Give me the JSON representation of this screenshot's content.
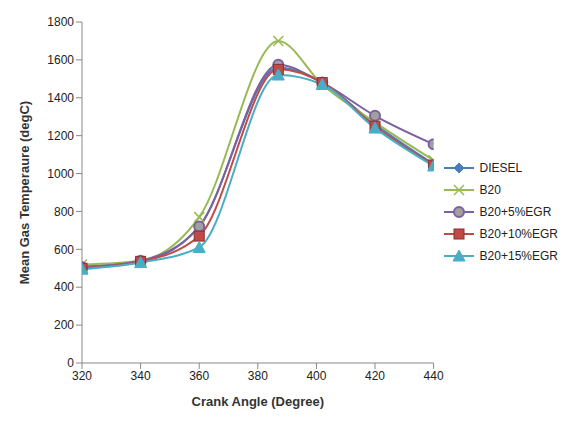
{
  "chart_data": {
    "type": "line",
    "x_label": "Crank Angle (Degree)",
    "y_label": "Mean Gas Temperaure (degC)",
    "x": [
      320,
      340,
      360,
      387,
      402,
      420,
      440
    ],
    "xlim": [
      320,
      440
    ],
    "xticks": [
      320,
      340,
      360,
      380,
      400,
      420,
      440
    ],
    "ylim": [
      0,
      1800
    ],
    "yticks": [
      0,
      200,
      400,
      600,
      800,
      1000,
      1200,
      1400,
      1600,
      1800
    ],
    "grid": false,
    "legend": "right",
    "series": [
      {
        "name": "DIESEL",
        "color": "#4a7ebb",
        "marker": "diamond",
        "values": [
          510,
          535,
          720,
          1560,
          1480,
          1260,
          1050
        ]
      },
      {
        "name": "B20",
        "color": "#98b954",
        "marker": "x",
        "values": [
          520,
          540,
          770,
          1700,
          1470,
          1270,
          1070
        ]
      },
      {
        "name": "B20+5%EGR",
        "color": "#7d60a0",
        "marker": "circle",
        "values": [
          505,
          540,
          720,
          1575,
          1480,
          1305,
          1155
        ]
      },
      {
        "name": "B20+10%EGR",
        "color": "#be4b48",
        "marker": "square",
        "values": [
          500,
          535,
          670,
          1550,
          1480,
          1250,
          1045
        ]
      },
      {
        "name": "B20+15%EGR",
        "color": "#4bacc6",
        "marker": "triangle",
        "values": [
          495,
          530,
          610,
          1520,
          1470,
          1240,
          1040
        ]
      }
    ]
  }
}
